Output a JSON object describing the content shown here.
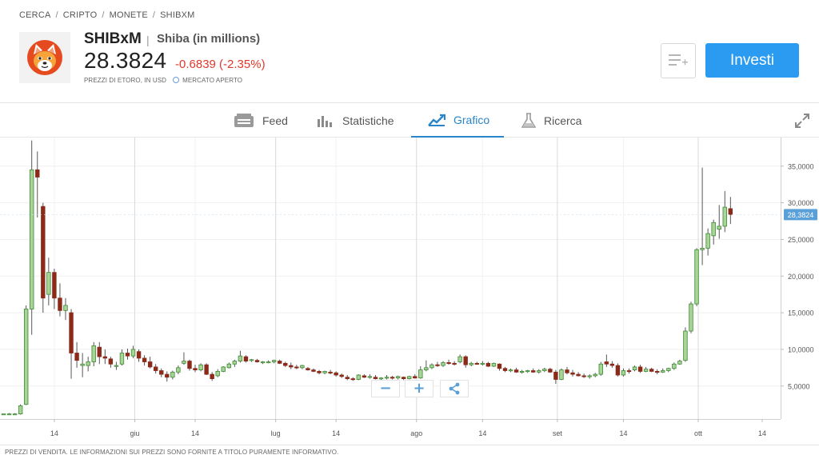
{
  "breadcrumb": [
    "CERCA",
    "CRIPTO",
    "MONETE",
    "SHIBXM"
  ],
  "asset": {
    "ticker": "SHIBxM",
    "name": "Shiba (in millions)",
    "price": "28.3824",
    "change": "-0.6839 (-2.35%)",
    "price_source": "PREZZI DI ETORO, IN USD",
    "market_status": "MERCATO APERTO"
  },
  "actions": {
    "invest_label": "Investi"
  },
  "tabs": [
    {
      "label": "Feed",
      "icon": "feed-icon"
    },
    {
      "label": "Statistiche",
      "icon": "bar-stats-icon"
    },
    {
      "label": "Grafico",
      "icon": "chart-trend-icon",
      "active": true
    },
    {
      "label": "Ricerca",
      "icon": "flask-icon"
    }
  ],
  "colors": {
    "up": "#3e8a33",
    "up_fill": "#a7d497",
    "down": "#8c2a1a",
    "accent": "#2a9bf0",
    "down_text": "#e0392b"
  },
  "chart_data": {
    "type": "candlestick",
    "x_ticks": [
      "14",
      "giu",
      "14",
      "lug",
      "14",
      "ago",
      "14",
      "set",
      "14",
      "ott",
      "14"
    ],
    "y_ticks": [
      "35,0000",
      "30,0000",
      "25,0000",
      "20,0000",
      "15,0000",
      "10,0000",
      "5,0000"
    ],
    "y_tick_values": [
      35,
      30,
      25,
      20,
      15,
      10,
      5
    ],
    "ylim": [
      0.5,
      38.9
    ],
    "x_index_range": [
      0,
      132
    ],
    "last_price_label": "28,3824",
    "last_price": 28.3824,
    "candles": [
      [
        1,
        1.2,
        1.2,
        1.2,
        1.2
      ],
      [
        2,
        1.2,
        1.3,
        1.2,
        1.2
      ],
      [
        3,
        1.2,
        1.3,
        1.1,
        1.2
      ],
      [
        4,
        1.2,
        2.5,
        1.1,
        2.3
      ],
      [
        5,
        2.5,
        16,
        2.4,
        15.5
      ],
      [
        6,
        15.5,
        38.5,
        12,
        34.5
      ],
      [
        7,
        34.5,
        37,
        28,
        33.5
      ],
      [
        8,
        29.5,
        30,
        15,
        17
      ],
      [
        9,
        17.5,
        22.5,
        16,
        20.5
      ],
      [
        10,
        20.5,
        21,
        15.5,
        17
      ],
      [
        11,
        17,
        19,
        14.5,
        15.3
      ],
      [
        12,
        15.3,
        17,
        14,
        16
      ],
      [
        13,
        15,
        15.5,
        6,
        9.5
      ],
      [
        14,
        9.5,
        11,
        7.5,
        8.5
      ],
      [
        15,
        7.8,
        9.5,
        6.2,
        8
      ],
      [
        16,
        7.8,
        9,
        7,
        8.3
      ],
      [
        17,
        8.3,
        11,
        7.7,
        10.5
      ],
      [
        18,
        10.3,
        11,
        8,
        9
      ],
      [
        19,
        9,
        10,
        8,
        8.8
      ],
      [
        20,
        8.7,
        9,
        7.5,
        8
      ],
      [
        21,
        7.7,
        8.3,
        7.2,
        7.8
      ],
      [
        22,
        8,
        10,
        7.8,
        9.5
      ],
      [
        23,
        9.5,
        10.1,
        8.6,
        9.1
      ],
      [
        24,
        9.1,
        10.5,
        8.8,
        10
      ],
      [
        25,
        9.7,
        10,
        8.3,
        8.8
      ],
      [
        26,
        8.8,
        9.2,
        7.8,
        8.3
      ],
      [
        27,
        8.3,
        9,
        7.4,
        7.6
      ],
      [
        28,
        7.6,
        8,
        6.7,
        7.1
      ],
      [
        29,
        7.1,
        7.4,
        6.2,
        6.6
      ],
      [
        30,
        6.6,
        7,
        5.6,
        6.2
      ],
      [
        31,
        6.2,
        7.1,
        5.9,
        6.9
      ],
      [
        32,
        6.9,
        7.8,
        6.6,
        7.5
      ],
      [
        33,
        8.1,
        9.6,
        7.9,
        8.4
      ],
      [
        34,
        8.4,
        8.6,
        7.1,
        7.4
      ],
      [
        35,
        7.4,
        7.9,
        6.9,
        7.2
      ],
      [
        36,
        7.2,
        8.1,
        7,
        7.9
      ],
      [
        37,
        7.9,
        8.1,
        6.5,
        6.6
      ],
      [
        38,
        6.6,
        6.9,
        5.7,
        6
      ],
      [
        39,
        6.4,
        7.3,
        6.2,
        7
      ],
      [
        40,
        7,
        7.7,
        6.9,
        7.6
      ],
      [
        41,
        7.5,
        8.2,
        7.4,
        8
      ],
      [
        42,
        8,
        8.6,
        7.6,
        8.4
      ],
      [
        43,
        8.4,
        9.8,
        8.2,
        9.1
      ],
      [
        44,
        9,
        9.2,
        8.2,
        8.4
      ],
      [
        45,
        8.5,
        8.7,
        8.3,
        8.6
      ],
      [
        46,
        8.5,
        8.7,
        8.2,
        8.3
      ],
      [
        47,
        8.2,
        8.4,
        8,
        8.3
      ],
      [
        48,
        8.3,
        8.5,
        8.1,
        8.3
      ],
      [
        49,
        8.3,
        8.6,
        8.1,
        8.5
      ],
      [
        50,
        8.4,
        8.6,
        8,
        8.1
      ],
      [
        51,
        8.1,
        8.3,
        7.6,
        7.8
      ],
      [
        52,
        7.8,
        8.2,
        7.3,
        7.6
      ],
      [
        53,
        7.6,
        7.9,
        7.3,
        7.5
      ],
      [
        54,
        7.5,
        7.9,
        7.3,
        7.8
      ],
      [
        55,
        7.4,
        7.6,
        7.1,
        7.2
      ],
      [
        56,
        7.2,
        7.4,
        6.9,
        7
      ],
      [
        57,
        7,
        7.2,
        6.6,
        6.8
      ],
      [
        58,
        6.8,
        7.1,
        6.6,
        7
      ],
      [
        59,
        6.9,
        7.2,
        6.6,
        6.8
      ],
      [
        60,
        6.8,
        7,
        6.3,
        6.5
      ],
      [
        61,
        6.5,
        6.7,
        6.1,
        6.3
      ],
      [
        62,
        6.2,
        6.5,
        5.8,
        6
      ],
      [
        63,
        6,
        6.2,
        5.7,
        5.9
      ],
      [
        64,
        5.9,
        6.6,
        5.8,
        6.5
      ],
      [
        65,
        6.4,
        6.6,
        6.1,
        6.2
      ],
      [
        66,
        6.2,
        6.6,
        6,
        6.3
      ],
      [
        67,
        6.2,
        6.5,
        5.9,
        6
      ],
      [
        68,
        6,
        6.2,
        5.8,
        6.1
      ],
      [
        69,
        6.1,
        6.5,
        5.9,
        6.2
      ],
      [
        70,
        6.2,
        6.4,
        5.9,
        6.1
      ],
      [
        71,
        6.1,
        6.4,
        5.9,
        6.3
      ],
      [
        72,
        6.2,
        6.3,
        5.8,
        6
      ],
      [
        73,
        6,
        6.4,
        5.9,
        6.3
      ],
      [
        74,
        6.3,
        6.6,
        6,
        6.1
      ],
      [
        75,
        6.1,
        7.7,
        6,
        7.2
      ],
      [
        76,
        7.2,
        8.5,
        7,
        7.5
      ],
      [
        77,
        7.5,
        8.1,
        7.3,
        7.9
      ],
      [
        78,
        7.9,
        8.3,
        7.6,
        7.8
      ],
      [
        79,
        7.8,
        8.4,
        7.6,
        8.2
      ],
      [
        80,
        8.2,
        8.6,
        7.9,
        8.1
      ],
      [
        81,
        8.1,
        8.4,
        7.8,
        8
      ],
      [
        82,
        8.3,
        9.3,
        8.1,
        9
      ],
      [
        83,
        9,
        9.2,
        7.5,
        7.9
      ],
      [
        84,
        7.9,
        8.3,
        7.7,
        8.1
      ],
      [
        85,
        8.1,
        8.3,
        7.9,
        8
      ],
      [
        86,
        8,
        8.4,
        7.8,
        8.1
      ],
      [
        87,
        8.1,
        8.3,
        7.6,
        7.7
      ],
      [
        88,
        7.7,
        8.2,
        7.6,
        8.1
      ],
      [
        89,
        8,
        8.1,
        7.1,
        7.4
      ],
      [
        90,
        7.4,
        7.6,
        6.9,
        7.1
      ],
      [
        91,
        7.1,
        7.4,
        6.9,
        7.2
      ],
      [
        92,
        7.2,
        7.5,
        6.8,
        6.9
      ],
      [
        93,
        6.9,
        7.2,
        6.7,
        7
      ],
      [
        94,
        7,
        7.2,
        6.8,
        7.1
      ],
      [
        95,
        7.1,
        7.4,
        6.8,
        6.9
      ],
      [
        96,
        6.9,
        7.3,
        6.7,
        7.1
      ],
      [
        97,
        7.1,
        7.5,
        6.9,
        7.3
      ],
      [
        98,
        7.3,
        7.5,
        6.8,
        6.9
      ],
      [
        99,
        6.9,
        7.2,
        5.3,
        5.9
      ],
      [
        100,
        5.9,
        7.4,
        5.8,
        7.2
      ],
      [
        101,
        7.2,
        7.6,
        6.6,
        6.8
      ],
      [
        102,
        6.8,
        7.2,
        6.3,
        6.6
      ],
      [
        103,
        6.6,
        6.9,
        6.3,
        6.4
      ],
      [
        104,
        6.4,
        6.7,
        6.1,
        6.3
      ],
      [
        105,
        6.3,
        6.6,
        6,
        6.4
      ],
      [
        106,
        6.4,
        6.8,
        6.2,
        6.6
      ],
      [
        107,
        6.6,
        8.3,
        6.4,
        8
      ],
      [
        108,
        8.3,
        9.3,
        7.6,
        8
      ],
      [
        109,
        8,
        8.4,
        7.5,
        7.8
      ],
      [
        110,
        7.8,
        8.1,
        6.3,
        6.5
      ],
      [
        111,
        6.5,
        7.4,
        6.3,
        7.1
      ],
      [
        112,
        7.1,
        7.4,
        6.7,
        7
      ],
      [
        113,
        7.2,
        7.8,
        7,
        7.6
      ],
      [
        114,
        7.6,
        7.9,
        6.8,
        7
      ],
      [
        115,
        7,
        7.6,
        6.9,
        7.3
      ],
      [
        116,
        7.3,
        7.5,
        6.9,
        7
      ],
      [
        117,
        7,
        7.3,
        6.6,
        6.9
      ],
      [
        118,
        6.9,
        7.4,
        6.8,
        7.1
      ],
      [
        119,
        7.1,
        7.5,
        6.9,
        7.4
      ],
      [
        120,
        7.4,
        8.2,
        7.2,
        8
      ],
      [
        121,
        8,
        8.6,
        7.9,
        8.4
      ],
      [
        122,
        8.5,
        13,
        8.3,
        12.5
      ],
      [
        123,
        12.5,
        16.5,
        12.2,
        16.2
      ],
      [
        124,
        16.2,
        23.8,
        15.9,
        23.6
      ],
      [
        125,
        23.6,
        34.8,
        21.5,
        23.8
      ],
      [
        126,
        23.8,
        26.5,
        22.8,
        25.8
      ],
      [
        127,
        25.5,
        27.7,
        24.3,
        27.3
      ],
      [
        128,
        26.4,
        29.7,
        25.1,
        26.8
      ],
      [
        129,
        26.8,
        31.6,
        26,
        29.4
      ],
      [
        130,
        29.2,
        30.8,
        27.1,
        28.4
      ]
    ]
  },
  "zoom": {
    "minus": "−",
    "plus": "+"
  },
  "footer_text": "PREZZI DI VENDITA. LE INFORMAZIONI SUI PREZZI SONO FORNITE A TITOLO PURAMENTE INFORMATIVO."
}
